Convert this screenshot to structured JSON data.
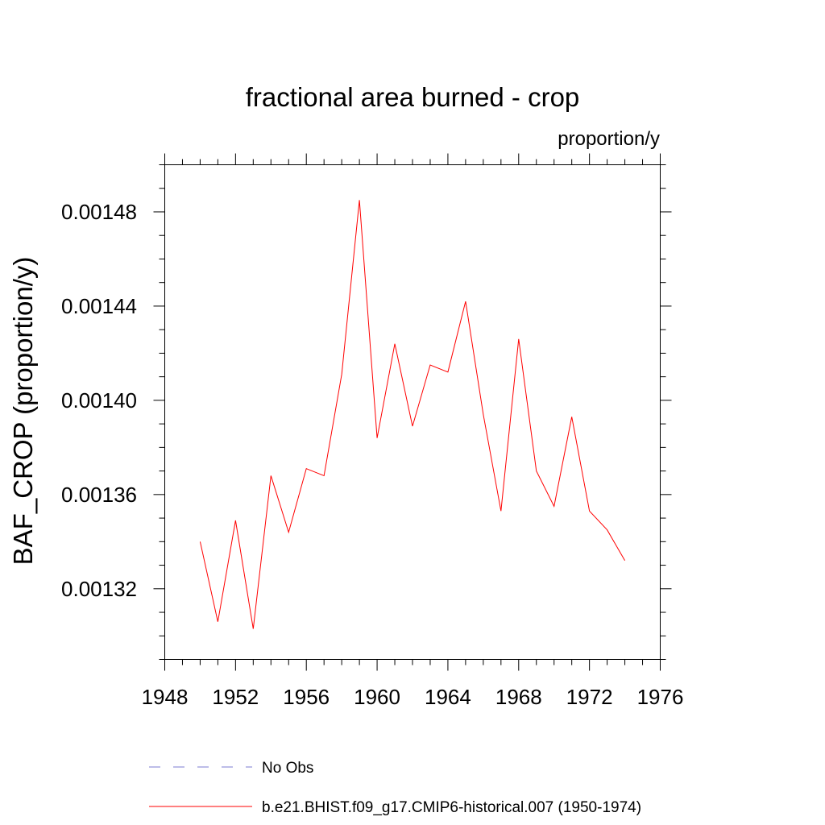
{
  "chart_data": {
    "type": "line",
    "title": "fractional area burned - crop",
    "units": "proportion/y",
    "ylabel": "BAF_CROP  (proportion/y)",
    "xlabel": "",
    "xlim": [
      1948,
      1976
    ],
    "ylim": [
      0.00129,
      0.0015
    ],
    "x_ticks": [
      "1948",
      "1952",
      "1956",
      "1960",
      "1964",
      "1968",
      "1972",
      "1976"
    ],
    "y_ticks": [
      "0.00132",
      "0.00136",
      "0.00140",
      "0.00144",
      "0.00148"
    ],
    "grid": false,
    "legend_position": "bottom",
    "series": [
      {
        "name": "No Obs",
        "color": "#7b7bd0",
        "style": "dashed",
        "x": [],
        "values": []
      },
      {
        "name": "b.e21.BHIST.f09_g17.CMIP6-historical.007 (1950-1974)",
        "color": "#ff0000",
        "style": "solid",
        "x": [
          1950,
          1951,
          1952,
          1953,
          1954,
          1955,
          1956,
          1957,
          1958,
          1959,
          1960,
          1961,
          1962,
          1963,
          1964,
          1965,
          1966,
          1967,
          1968,
          1969,
          1970,
          1971,
          1972,
          1973,
          1974
        ],
        "values": [
          0.00134,
          0.001306,
          0.001349,
          0.001303,
          0.001368,
          0.001344,
          0.001371,
          0.001368,
          0.001411,
          0.001485,
          0.001384,
          0.001424,
          0.001389,
          0.001415,
          0.001412,
          0.001442,
          0.001394,
          0.001353,
          0.001426,
          0.00137,
          0.001355,
          0.001393,
          0.001353,
          0.001345,
          0.001332
        ]
      }
    ]
  }
}
